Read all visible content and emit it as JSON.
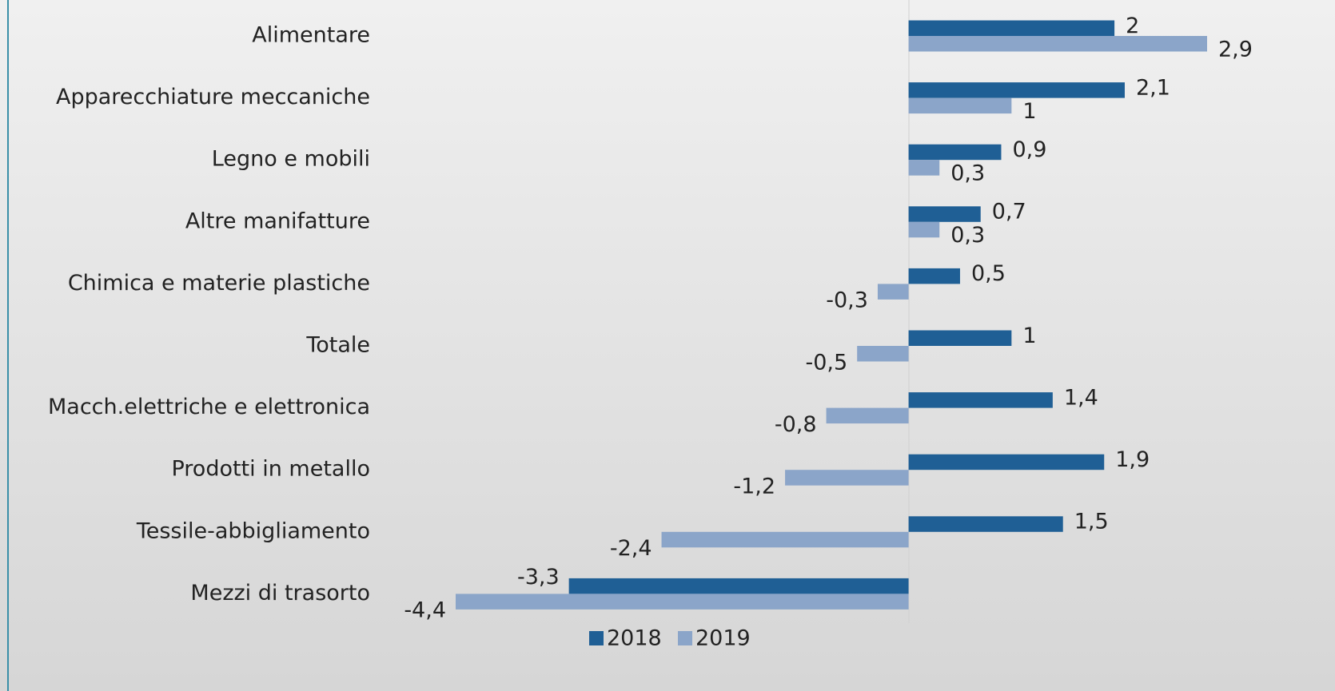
{
  "chart_data": {
    "type": "barh",
    "categories": [
      "Alimentare",
      "Apparecchiature meccaniche",
      "Legno e mobili",
      "Altre manifatture",
      "Chimica e materie plastiche",
      "Totale",
      "Macch.elettriche e elettronica",
      "Prodotti in metallo",
      "Tessile-abbigliamento",
      "Mezzi di trasorto"
    ],
    "series": [
      {
        "name": "2018",
        "color": "#1f5f95",
        "values": [
          2,
          2.1,
          0.9,
          0.7,
          0.5,
          1,
          1.4,
          1.9,
          1.5,
          -3.3
        ],
        "value_labels": [
          "2",
          "2,1",
          "0,9",
          "0,7",
          "0,5",
          "1",
          "1,4",
          "1,9",
          "1,5",
          "-3,3"
        ]
      },
      {
        "name": "2019",
        "color": "#8ba5c9",
        "values": [
          2.9,
          1,
          0.3,
          0.3,
          -0.3,
          -0.5,
          -0.8,
          -1.2,
          -2.4,
          -4.4
        ],
        "value_labels": [
          "2,9",
          "1",
          "0,3",
          "0,3",
          "-0,3",
          "-0,5",
          "-0,8",
          "-1,2",
          "-2,4",
          "-4,4"
        ]
      }
    ],
    "legend": "bottom"
  }
}
